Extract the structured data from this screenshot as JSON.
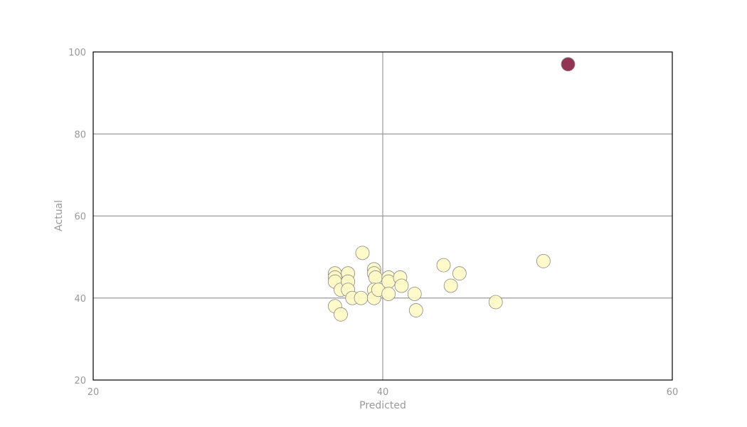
{
  "chart_data": {
    "type": "scatter",
    "title": "",
    "xlabel": "Predicted",
    "ylabel": "Actual",
    "xlim": [
      20,
      60
    ],
    "ylim": [
      20,
      100
    ],
    "x_ticks": [
      "20",
      "40",
      "60"
    ],
    "y_ticks": [
      "20",
      "40",
      "60",
      "80",
      "100"
    ],
    "grid": true,
    "colors": {
      "normal": "#fff9c4",
      "outlier": "#8b2346",
      "point_edge": "#8a8a8a",
      "grid": "#999999",
      "frame": "#000000",
      "text": "#999999"
    },
    "points": [
      {
        "x": 36.7,
        "y": 46.0
      },
      {
        "x": 36.7,
        "y": 45.0
      },
      {
        "x": 36.7,
        "y": 44.0
      },
      {
        "x": 36.7,
        "y": 38.0
      },
      {
        "x": 37.1,
        "y": 36.0
      },
      {
        "x": 37.1,
        "y": 42.0
      },
      {
        "x": 37.6,
        "y": 46.0
      },
      {
        "x": 37.6,
        "y": 44.0
      },
      {
        "x": 37.6,
        "y": 42.0
      },
      {
        "x": 37.9,
        "y": 40.0
      },
      {
        "x": 38.5,
        "y": 40.0
      },
      {
        "x": 38.6,
        "y": 51.0
      },
      {
        "x": 39.4,
        "y": 47.0
      },
      {
        "x": 39.4,
        "y": 46.0
      },
      {
        "x": 39.5,
        "y": 45.0
      },
      {
        "x": 39.4,
        "y": 42.0
      },
      {
        "x": 39.4,
        "y": 40.0
      },
      {
        "x": 39.7,
        "y": 42.0
      },
      {
        "x": 40.4,
        "y": 45.0
      },
      {
        "x": 40.4,
        "y": 44.0
      },
      {
        "x": 40.4,
        "y": 41.0
      },
      {
        "x": 41.2,
        "y": 45.0
      },
      {
        "x": 41.3,
        "y": 43.0
      },
      {
        "x": 42.2,
        "y": 41.0
      },
      {
        "x": 42.3,
        "y": 37.0
      },
      {
        "x": 44.2,
        "y": 48.0
      },
      {
        "x": 44.7,
        "y": 43.0
      },
      {
        "x": 45.3,
        "y": 46.0
      },
      {
        "x": 47.8,
        "y": 39.0
      },
      {
        "x": 51.1,
        "y": 49.0
      },
      {
        "x": 52.8,
        "y": 97.0,
        "outlier": true
      }
    ]
  }
}
